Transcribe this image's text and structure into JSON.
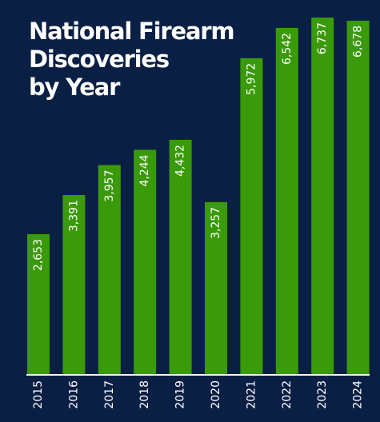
{
  "chart_data": {
    "type": "bar",
    "title_lines": [
      "National Firearm",
      "Discoveries",
      "by Year"
    ],
    "categories": [
      "2015",
      "2016",
      "2017",
      "2018",
      "2019",
      "2020",
      "2021",
      "2022",
      "2023",
      "2024"
    ],
    "values": [
      2653,
      3391,
      3957,
      4244,
      4432,
      3257,
      5972,
      6542,
      6737,
      6678
    ],
    "value_labels": [
      "2,653",
      "3,391",
      "3,957",
      "4,244",
      "4,432",
      "3,257",
      "5,972",
      "6,542",
      "6,737",
      "6,678"
    ],
    "ylim": [
      0,
      6737
    ],
    "grid": false,
    "legend": "none"
  },
  "colors": {
    "background": "#0a1f44",
    "bar": "#3a9a0a",
    "text": "#ffffff",
    "baseline": "#ffffff"
  }
}
